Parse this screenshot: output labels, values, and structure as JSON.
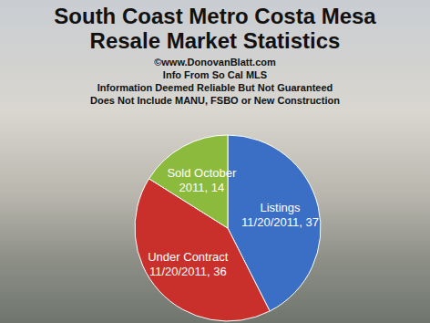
{
  "chart_data": {
    "type": "pie",
    "title": "South Coast Metro Costa Mesa Resale Market Statistics",
    "subtitle": [
      "©www.DonovanBlatt.com",
      "Info  From So Cal MLS",
      "Information Deemed Reliable But Not Guaranteed",
      "Does Not Include MANU, FSBO or New Construction"
    ],
    "categories": [
      "Listings 11/20/2011",
      "Under Contract 11/20/2011",
      "Sold October 2011"
    ],
    "values": [
      37,
      36,
      14
    ],
    "colors": [
      "#3b6fc6",
      "#c9302c",
      "#8cba3c"
    ],
    "data_labels": true
  }
}
